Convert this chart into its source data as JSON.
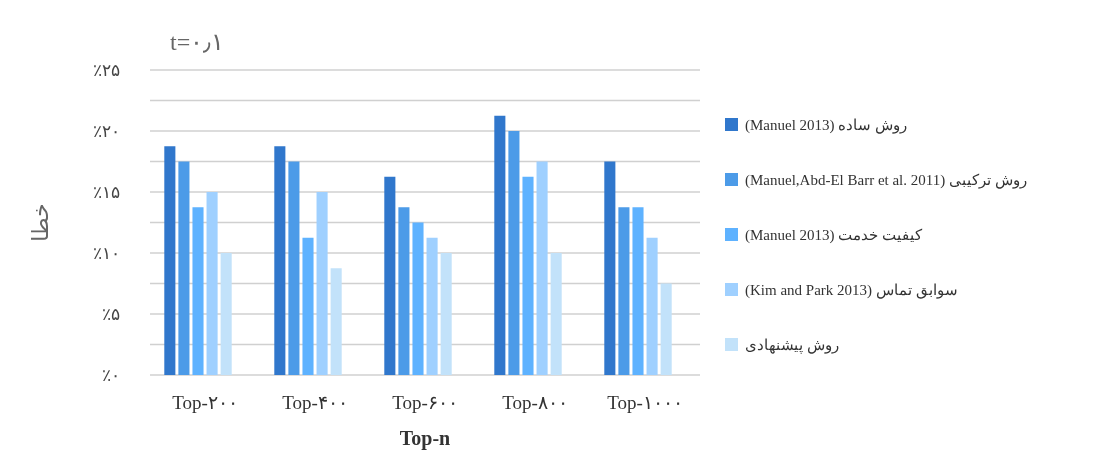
{
  "chart_data": {
    "type": "bar",
    "title": "t=۰٫۱",
    "xlabel": "Top-n",
    "ylabel": "خطا",
    "categories": [
      "Top-۲۰۰",
      "Top-۴۰۰",
      "Top-۶۰۰",
      "Top-۸۰۰",
      "Top-۱۰۰۰"
    ],
    "series": [
      {
        "name": "روش ساده (Manuel 2013)",
        "color": "#3077cc",
        "values": [
          18.75,
          18.75,
          16.25,
          21.25,
          17.5
        ]
      },
      {
        "name": "روش ترکیبی (Manuel,Abd-El Barr et al. 2011)",
        "color": "#4c9be8",
        "values": [
          17.5,
          17.5,
          13.75,
          20,
          13.75
        ]
      },
      {
        "name": "کیفیت خدمت (Manuel 2013)",
        "color": "#5eb2ff",
        "values": [
          13.75,
          11.25,
          12.5,
          16.25,
          13.75
        ]
      },
      {
        "name": "سوابق تماس (Kim and Park 2013)",
        "color": "#9fd0ff",
        "values": [
          15,
          15,
          11.25,
          17.5,
          11.25
        ]
      },
      {
        "name": "روش پیشنهادی",
        "color": "#c2e2fa",
        "values": [
          10,
          8.75,
          10,
          10,
          7.5
        ]
      }
    ],
    "ylim": [
      0,
      25
    ],
    "yticks": [
      {
        "value": 0,
        "label": "٪۰"
      },
      {
        "value": 2.5,
        "label": null
      },
      {
        "value": 5,
        "label": "٪۵"
      },
      {
        "value": 7.5,
        "label": null
      },
      {
        "value": 10,
        "label": "٪۱۰"
      },
      {
        "value": 12.5,
        "label": null
      },
      {
        "value": 15,
        "label": "٪۱۵"
      },
      {
        "value": 17.5,
        "label": null
      },
      {
        "value": 20,
        "label": "٪۲۰"
      },
      {
        "value": 22.5,
        "label": null
      },
      {
        "value": 25,
        "label": "٪۲۵"
      }
    ],
    "grid": "y",
    "legend": "right"
  }
}
